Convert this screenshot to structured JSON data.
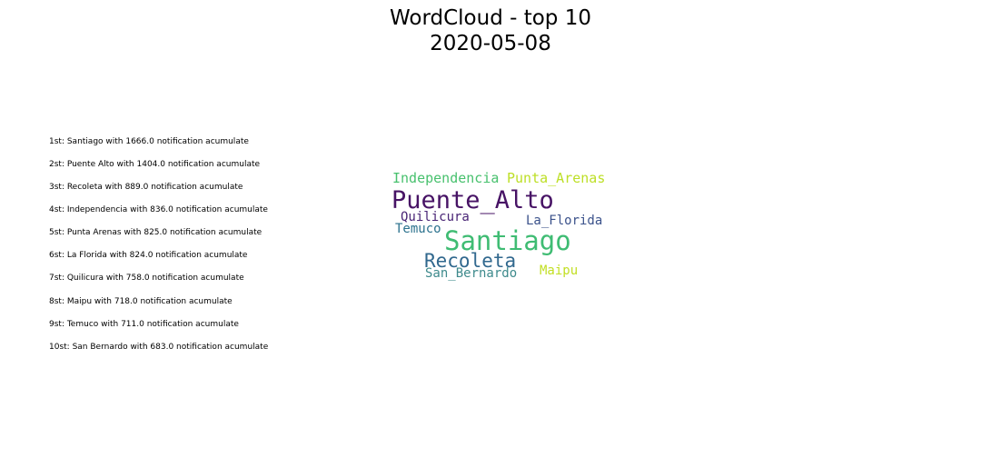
{
  "title": {
    "line1": "WordCloud - top 10",
    "line2": "2020-05-08"
  },
  "ranking": [
    "1st: Santiago with 1666.0 notification acumulate",
    "2st: Puente Alto with 1404.0 notification acumulate",
    "3st: Recoleta with 889.0 notification acumulate",
    "4st: Independencia with 836.0 notification acumulate",
    "5st: Punta Arenas with 825.0 notification acumulate",
    "6st: La Florida with 824.0 notification acumulate",
    "7st: Quilicura with 758.0 notification acumulate",
    "8st: Maipu with 718.0 notification acumulate",
    "9st: Temuco with 711.0 notification acumulate",
    "10st: San Bernardo with 683.0 notification acumulate"
  ],
  "chart_data": {
    "type": "wordcloud",
    "title": "WordCloud - top 10\n2020-05-08",
    "words": [
      {
        "text": "Santiago",
        "value": 1666.0,
        "color": "#3fbc73"
      },
      {
        "text": "Puente_Alto",
        "value": 1404.0,
        "color": "#471365"
      },
      {
        "text": "Recoleta",
        "value": 889.0,
        "color": "#31688e"
      },
      {
        "text": "Independencia",
        "value": 836.0,
        "color": "#48c16e"
      },
      {
        "text": "Punta_Arenas",
        "value": 825.0,
        "color": "#bddf26"
      },
      {
        "text": "La_Florida",
        "value": 824.0,
        "color": "#3b528b"
      },
      {
        "text": "Quilicura",
        "value": 758.0,
        "color": "#482475"
      },
      {
        "text": "Maipu",
        "value": 718.0,
        "color": "#c2df23"
      },
      {
        "text": "Temuco",
        "value": 711.0,
        "color": "#2c728e"
      },
      {
        "text": "San_Bernardo",
        "value": 683.0,
        "color": "#3e8a8c"
      }
    ]
  }
}
